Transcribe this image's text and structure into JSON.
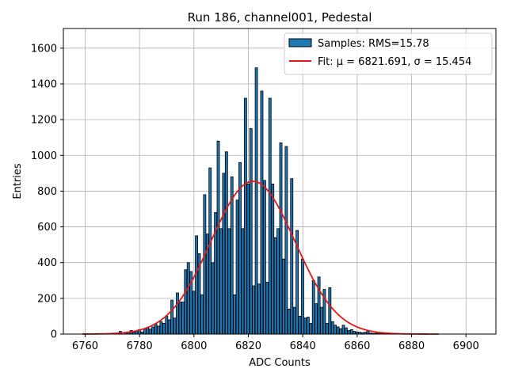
{
  "chart_data": {
    "type": "bar",
    "title": "Run 186, channel001, Pedestal",
    "xlabel": "ADC Counts",
    "ylabel": "Entries",
    "xlim": [
      6752,
      6911
    ],
    "ylim": [
      0,
      1710
    ],
    "xticks": [
      6760,
      6780,
      6800,
      6820,
      6840,
      6860,
      6880,
      6900
    ],
    "yticks": [
      0,
      200,
      400,
      600,
      800,
      1000,
      1200,
      1400,
      1600
    ],
    "grid": true,
    "legend_position": "top-right",
    "bin_width": 1,
    "histogram": {
      "name": "Samples: RMS=15.78",
      "color": "#1f77b4",
      "edgecolor": "#000000",
      "x": [
        6773,
        6775,
        6776,
        6777,
        6778,
        6779,
        6780,
        6781,
        6782,
        6783,
        6784,
        6785,
        6786,
        6787,
        6788,
        6789,
        6790,
        6791,
        6792,
        6793,
        6794,
        6795,
        6796,
        6797,
        6798,
        6799,
        6800,
        6801,
        6802,
        6803,
        6804,
        6805,
        6806,
        6807,
        6808,
        6809,
        6810,
        6811,
        6812,
        6813,
        6814,
        6815,
        6816,
        6817,
        6818,
        6819,
        6820,
        6821,
        6822,
        6823,
        6824,
        6825,
        6826,
        6827,
        6828,
        6829,
        6830,
        6831,
        6832,
        6833,
        6834,
        6835,
        6836,
        6837,
        6838,
        6839,
        6840,
        6841,
        6842,
        6843,
        6844,
        6845,
        6846,
        6847,
        6848,
        6849,
        6850,
        6851,
        6852,
        6853,
        6854,
        6855,
        6856,
        6857,
        6858,
        6859,
        6860,
        6861,
        6862,
        6863,
        6864,
        6865,
        6866,
        6867,
        6868,
        6869,
        6870,
        6872,
        6874
      ],
      "values": [
        15,
        8,
        12,
        20,
        10,
        18,
        25,
        12,
        30,
        35,
        28,
        40,
        55,
        45,
        70,
        60,
        100,
        80,
        190,
        90,
        230,
        180,
        180,
        360,
        400,
        350,
        240,
        550,
        450,
        220,
        780,
        560,
        930,
        400,
        680,
        1080,
        590,
        900,
        1020,
        590,
        880,
        220,
        750,
        960,
        590,
        1320,
        840,
        1150,
        270,
        1490,
        280,
        1360,
        860,
        290,
        1320,
        840,
        540,
        590,
        1070,
        420,
        1050,
        140,
        870,
        150,
        580,
        100,
        420,
        90,
        95,
        60,
        300,
        170,
        320,
        150,
        250,
        60,
        260,
        70,
        50,
        40,
        30,
        50,
        35,
        20,
        25,
        15,
        12,
        10,
        8,
        10,
        15,
        6,
        4,
        5,
        4,
        3,
        4,
        3,
        2
      ]
    },
    "fit": {
      "name": "Fit: μ = 6821.691, σ = 15.454",
      "color": "#e31a1c",
      "mu": 6821.691,
      "sigma": 15.454,
      "amplitude": 855,
      "x_range": [
        6759,
        6890
      ]
    }
  }
}
